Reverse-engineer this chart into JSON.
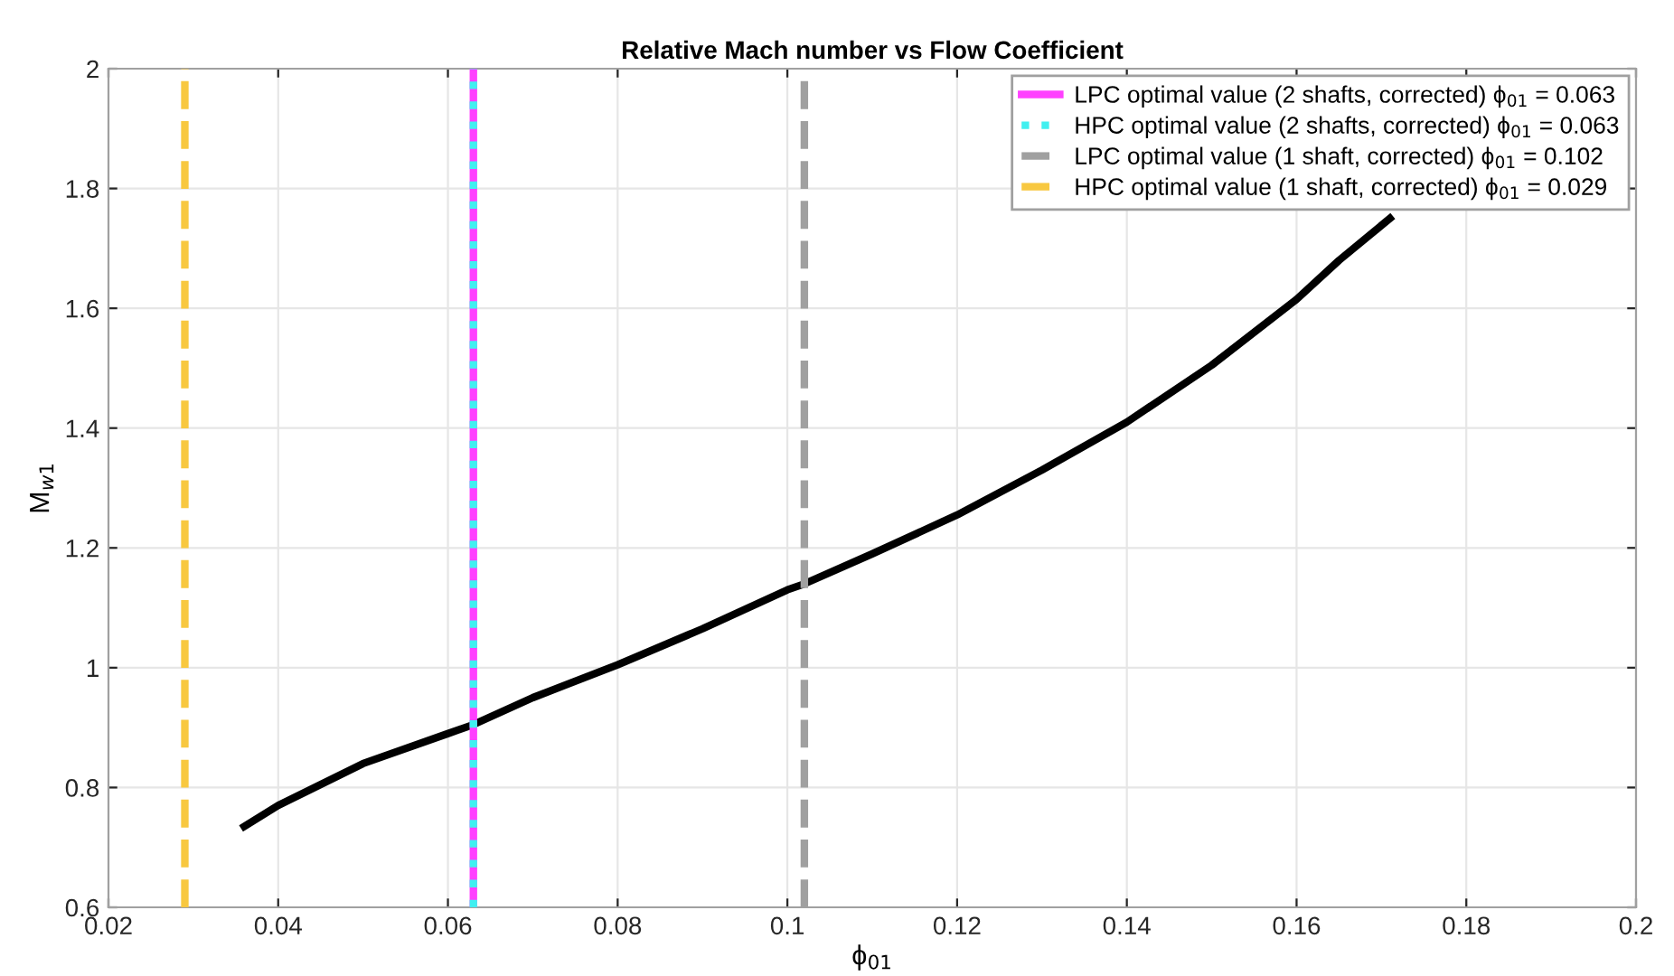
{
  "chart_data": {
    "type": "line",
    "title": "Relative Mach number vs Flow Coefficient",
    "xlabel": "ϕ$_{01}$",
    "ylabel": "M$_{w1}$",
    "x": [
      0.036,
      0.04,
      0.05,
      0.06,
      0.063,
      0.07,
      0.08,
      0.09,
      0.1,
      0.102,
      0.11,
      0.12,
      0.13,
      0.14,
      0.15,
      0.16,
      0.165,
      0.171
    ],
    "series": [
      {
        "color": "#000000",
        "values": [
          0.735,
          0.77,
          0.84,
          0.89,
          0.905,
          0.95,
          1.005,
          1.065,
          1.13,
          1.14,
          1.19,
          1.255,
          1.33,
          1.41,
          1.505,
          1.615,
          1.68,
          1.75
        ]
      },
      {
        "name": "LPC optimal value (2 shafts, corrected) ϕ$_{01}$ = 0.063",
        "color": "#ff40ff",
        "line_style": "solid",
        "x": [
          0.063,
          0.063
        ],
        "values": [
          0.6,
          2
        ]
      },
      {
        "name": "HPC optimal value (2 shafts, corrected) ϕ$_{01}$ = 0.063",
        "color": "#40f0f0",
        "line_style": "dotted",
        "x": [
          0.063,
          0.063
        ],
        "values": [
          0.6,
          2
        ]
      },
      {
        "name": "LPC optimal value (1 shaft, corrected) ϕ$_{01}$ = 0.102",
        "color": "#a0a0a0",
        "line_style": "dashed",
        "x": [
          0.102,
          0.102
        ],
        "values": [
          0.6,
          2
        ]
      },
      {
        "name": "HPC optimal value (1 shaft, corrected) ϕ$_{01}$ = 0.029",
        "color": "#f8c840",
        "line_style": "dashed",
        "x": [
          0.029,
          0.029
        ],
        "values": [
          0.6,
          2
        ]
      }
    ],
    "xlim": [
      0.02,
      0.2
    ],
    "xticks": [
      0.02,
      0.04,
      0.06,
      0.08,
      0.1,
      0.12,
      0.14,
      0.16,
      0.18,
      0.2
    ],
    "ylim": [
      0.6,
      2
    ],
    "yticks": [
      0.6,
      0.8,
      1,
      1.2,
      1.4,
      1.6,
      1.8,
      2
    ],
    "grid": true,
    "legend": "top right",
    "line_style": "solid"
  }
}
